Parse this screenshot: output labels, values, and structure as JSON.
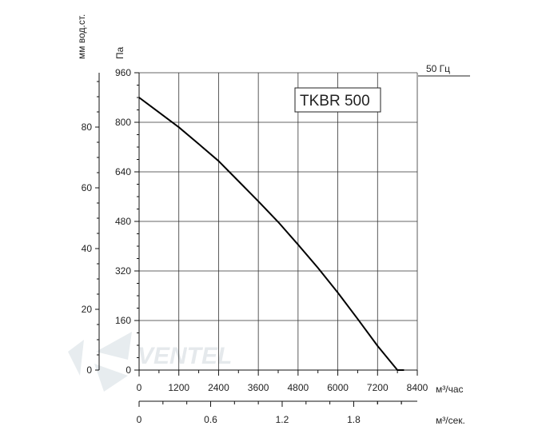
{
  "chart_data": {
    "type": "line",
    "title": "TKBR 500",
    "legend": "50 Гц",
    "y_left_outer": {
      "label": "мм вод.ст.",
      "ticks": [
        "0",
        "20",
        "40",
        "60",
        "80"
      ],
      "values": [
        0,
        20,
        40,
        60,
        80
      ]
    },
    "y_left_inner": {
      "label": "Па",
      "ticks": [
        "0",
        "160",
        "320",
        "480",
        "640",
        "800",
        "960"
      ],
      "values": [
        0,
        160,
        320,
        480,
        640,
        800,
        960
      ],
      "ylim": [
        0,
        960
      ]
    },
    "x_primary": {
      "label": "м³/час",
      "ticks": [
        "0",
        "1200",
        "2400",
        "3600",
        "4800",
        "6000",
        "7200",
        "8400"
      ],
      "values": [
        0,
        1200,
        2400,
        3600,
        4800,
        6000,
        7200,
        8400
      ],
      "xlim": [
        0,
        8400
      ]
    },
    "x_secondary": {
      "label": "м³/сек.",
      "ticks": [
        "0",
        "0.6",
        "1.2",
        "1.8"
      ],
      "values": [
        0,
        0.6,
        1.2,
        1.8
      ]
    },
    "series": [
      {
        "name": "50 Гц",
        "x": [
          0,
          600,
          1200,
          1800,
          2400,
          3000,
          3600,
          4200,
          4800,
          5400,
          6000,
          6600,
          7200,
          7800,
          8000
        ],
        "y": [
          880,
          832,
          784,
          730,
          675,
          610,
          545,
          478,
          405,
          330,
          250,
          165,
          78,
          0,
          0
        ]
      }
    ]
  },
  "watermark": {
    "text": "VENTEL",
    "color": "#cfd8de"
  }
}
